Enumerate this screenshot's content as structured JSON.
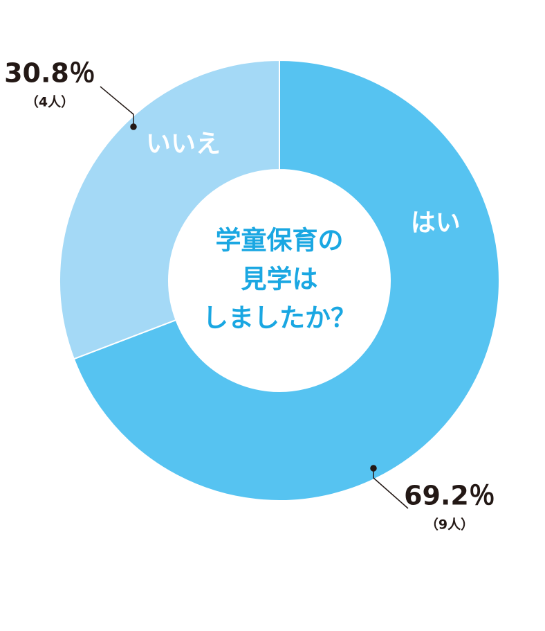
{
  "chart_data": {
    "type": "donut",
    "title": [
      "学童保育の",
      "見学は",
      "しましたか？"
    ],
    "categories": [
      "はい",
      "いいえ"
    ],
    "values": [
      69.2,
      30.8
    ],
    "value_labels": [
      "69.2％",
      "30.8％"
    ],
    "count_labels": [
      "（9人）",
      "（4人）"
    ],
    "colors": [
      "#56c3f1",
      "#a4d9f6"
    ]
  }
}
